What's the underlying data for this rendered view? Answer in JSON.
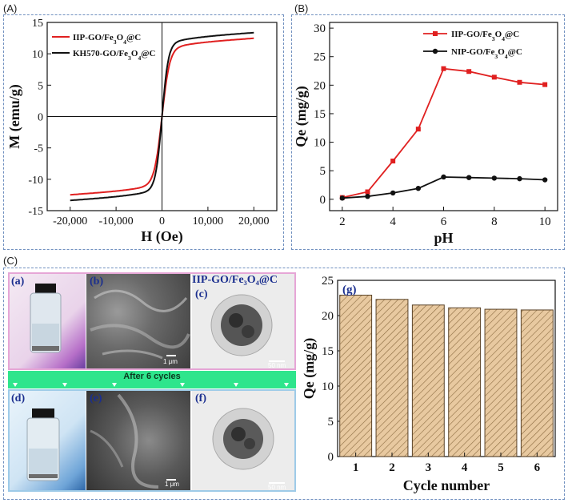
{
  "panels": {
    "A": {
      "label": "(A)"
    },
    "B": {
      "label": "(B)"
    },
    "C": {
      "label": "(C)"
    }
  },
  "chart_data": [
    {
      "id": "A",
      "type": "line",
      "title": "",
      "xlabel": "H (Oe)",
      "ylabel": "M (emu/g)",
      "xlim": [
        -25000,
        25000
      ],
      "ylim": [
        -15,
        15
      ],
      "xticks": [
        -20000,
        -10000,
        0,
        10000,
        20000
      ],
      "xtick_labels": [
        "-20,000",
        "-10,000",
        "0",
        "10,000",
        "20,000"
      ],
      "yticks": [
        -15,
        -10,
        -5,
        0,
        5,
        10,
        15
      ],
      "ytick_labels": [
        "-15",
        "-10",
        "-5",
        "0",
        "5",
        "10",
        "15"
      ],
      "legend_position": "top-left",
      "series": [
        {
          "name": "IIP-GO/Fe3O4@C",
          "color": "#e02020",
          "ms": 11.6,
          "hk": 900
        },
        {
          "name": "KH570-GO/Fe3O4@C",
          "color": "#111111",
          "ms": 12.5,
          "hk": 750
        }
      ]
    },
    {
      "id": "B",
      "type": "line",
      "title": "",
      "xlabel": "pH",
      "ylabel": "Qe (mg/g)",
      "xlim": [
        1.5,
        10.5
      ],
      "ylim": [
        -2,
        31
      ],
      "xticks": [
        2,
        4,
        6,
        8,
        10
      ],
      "yticks": [
        0,
        5,
        10,
        15,
        20,
        25,
        30
      ],
      "legend_position": "top-right",
      "x": [
        2,
        3,
        4,
        5,
        6,
        7,
        8,
        9,
        10
      ],
      "series": [
        {
          "name": "IIP-GO/Fe3O4@C",
          "color": "#e02020",
          "marker": "square",
          "values": [
            0.3,
            1.3,
            6.7,
            12.3,
            22.9,
            22.4,
            21.4,
            20.5,
            20.1
          ]
        },
        {
          "name": "NIP-GO/Fe3O4@C",
          "color": "#111111",
          "marker": "circle",
          "values": [
            0.2,
            0.5,
            1.1,
            1.9,
            3.9,
            3.8,
            3.7,
            3.6,
            3.4
          ]
        }
      ]
    },
    {
      "id": "g",
      "type": "bar",
      "title": "",
      "panel_label": "(g)",
      "xlabel": "Cycle number",
      "ylabel": "Qe (mg/g)",
      "ylim": [
        0,
        25
      ],
      "yticks": [
        0,
        5,
        10,
        15,
        20,
        25
      ],
      "categories": [
        "1",
        "2",
        "3",
        "4",
        "5",
        "6"
      ],
      "values": [
        22.9,
        22.3,
        21.5,
        21.1,
        20.9,
        20.8
      ],
      "bar_color": "#e8c9a0"
    }
  ],
  "images": {
    "a": {
      "label": "(a)"
    },
    "b": {
      "label": "(b)",
      "scale": "1 μm"
    },
    "c": {
      "label": "(c)",
      "scale": "50 nm"
    },
    "d": {
      "label": "(d)"
    },
    "e": {
      "label": "(e)",
      "scale": "1 μm"
    },
    "f": {
      "label": "(f)",
      "scale": "50 nm"
    },
    "sample_title": "IIP-GO/Fe₃O₄@C"
  },
  "banner": {
    "text": "After 6 cycles",
    "color": "#2ee58c"
  }
}
